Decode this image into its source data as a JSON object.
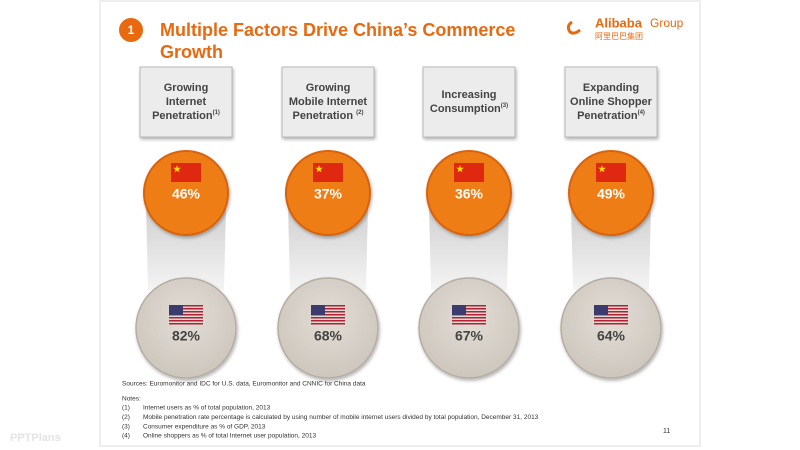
{
  "header": {
    "badge": "1",
    "title_lines": [
      "Multiple Factors Drive China’s Commerce",
      "Growth"
    ],
    "logo": "Alibaba",
    "logo_group": "Group",
    "logo_cn": "阿里巴巴集团"
  },
  "columns": [
    {
      "label_lines": [
        "Growing",
        "Internet",
        "Penetration"
      ],
      "note": "(1)",
      "china": "46%",
      "us": "82%"
    },
    {
      "label_lines": [
        "Growing",
        "Mobile Internet",
        "Penetration "
      ],
      "note": "(2)",
      "china": "37%",
      "us": "68%"
    },
    {
      "label_lines": [
        "Increasing",
        "Consumption"
      ],
      "note": "(3)",
      "china": "36%",
      "us": "67%"
    },
    {
      "label_lines": [
        "Expanding",
        "Online Shopper",
        "Penetration"
      ],
      "note": "(4)",
      "china": "49%",
      "us": "64%"
    }
  ],
  "sources": "Sources: Euromonitor and IDC for U.S. data, Euromonitor and CNNIC for China data",
  "notes_title": "Notes:",
  "notes": [
    {
      "num": "(1)",
      "text": "Internet users as % of total population, 2013"
    },
    {
      "num": "(2)",
      "text": "Mobile penetration rate percentage is calculated by using number of mobile internet users divided by total population, December 31, 2013"
    },
    {
      "num": "(3)",
      "text": "Consumer expenditure as % of GDP, 2013"
    },
    {
      "num": "(4)",
      "text": "Online shoppers as % of total Internet user population, 2013"
    }
  ],
  "page_number": "11",
  "watermark": "PPTPlans"
}
